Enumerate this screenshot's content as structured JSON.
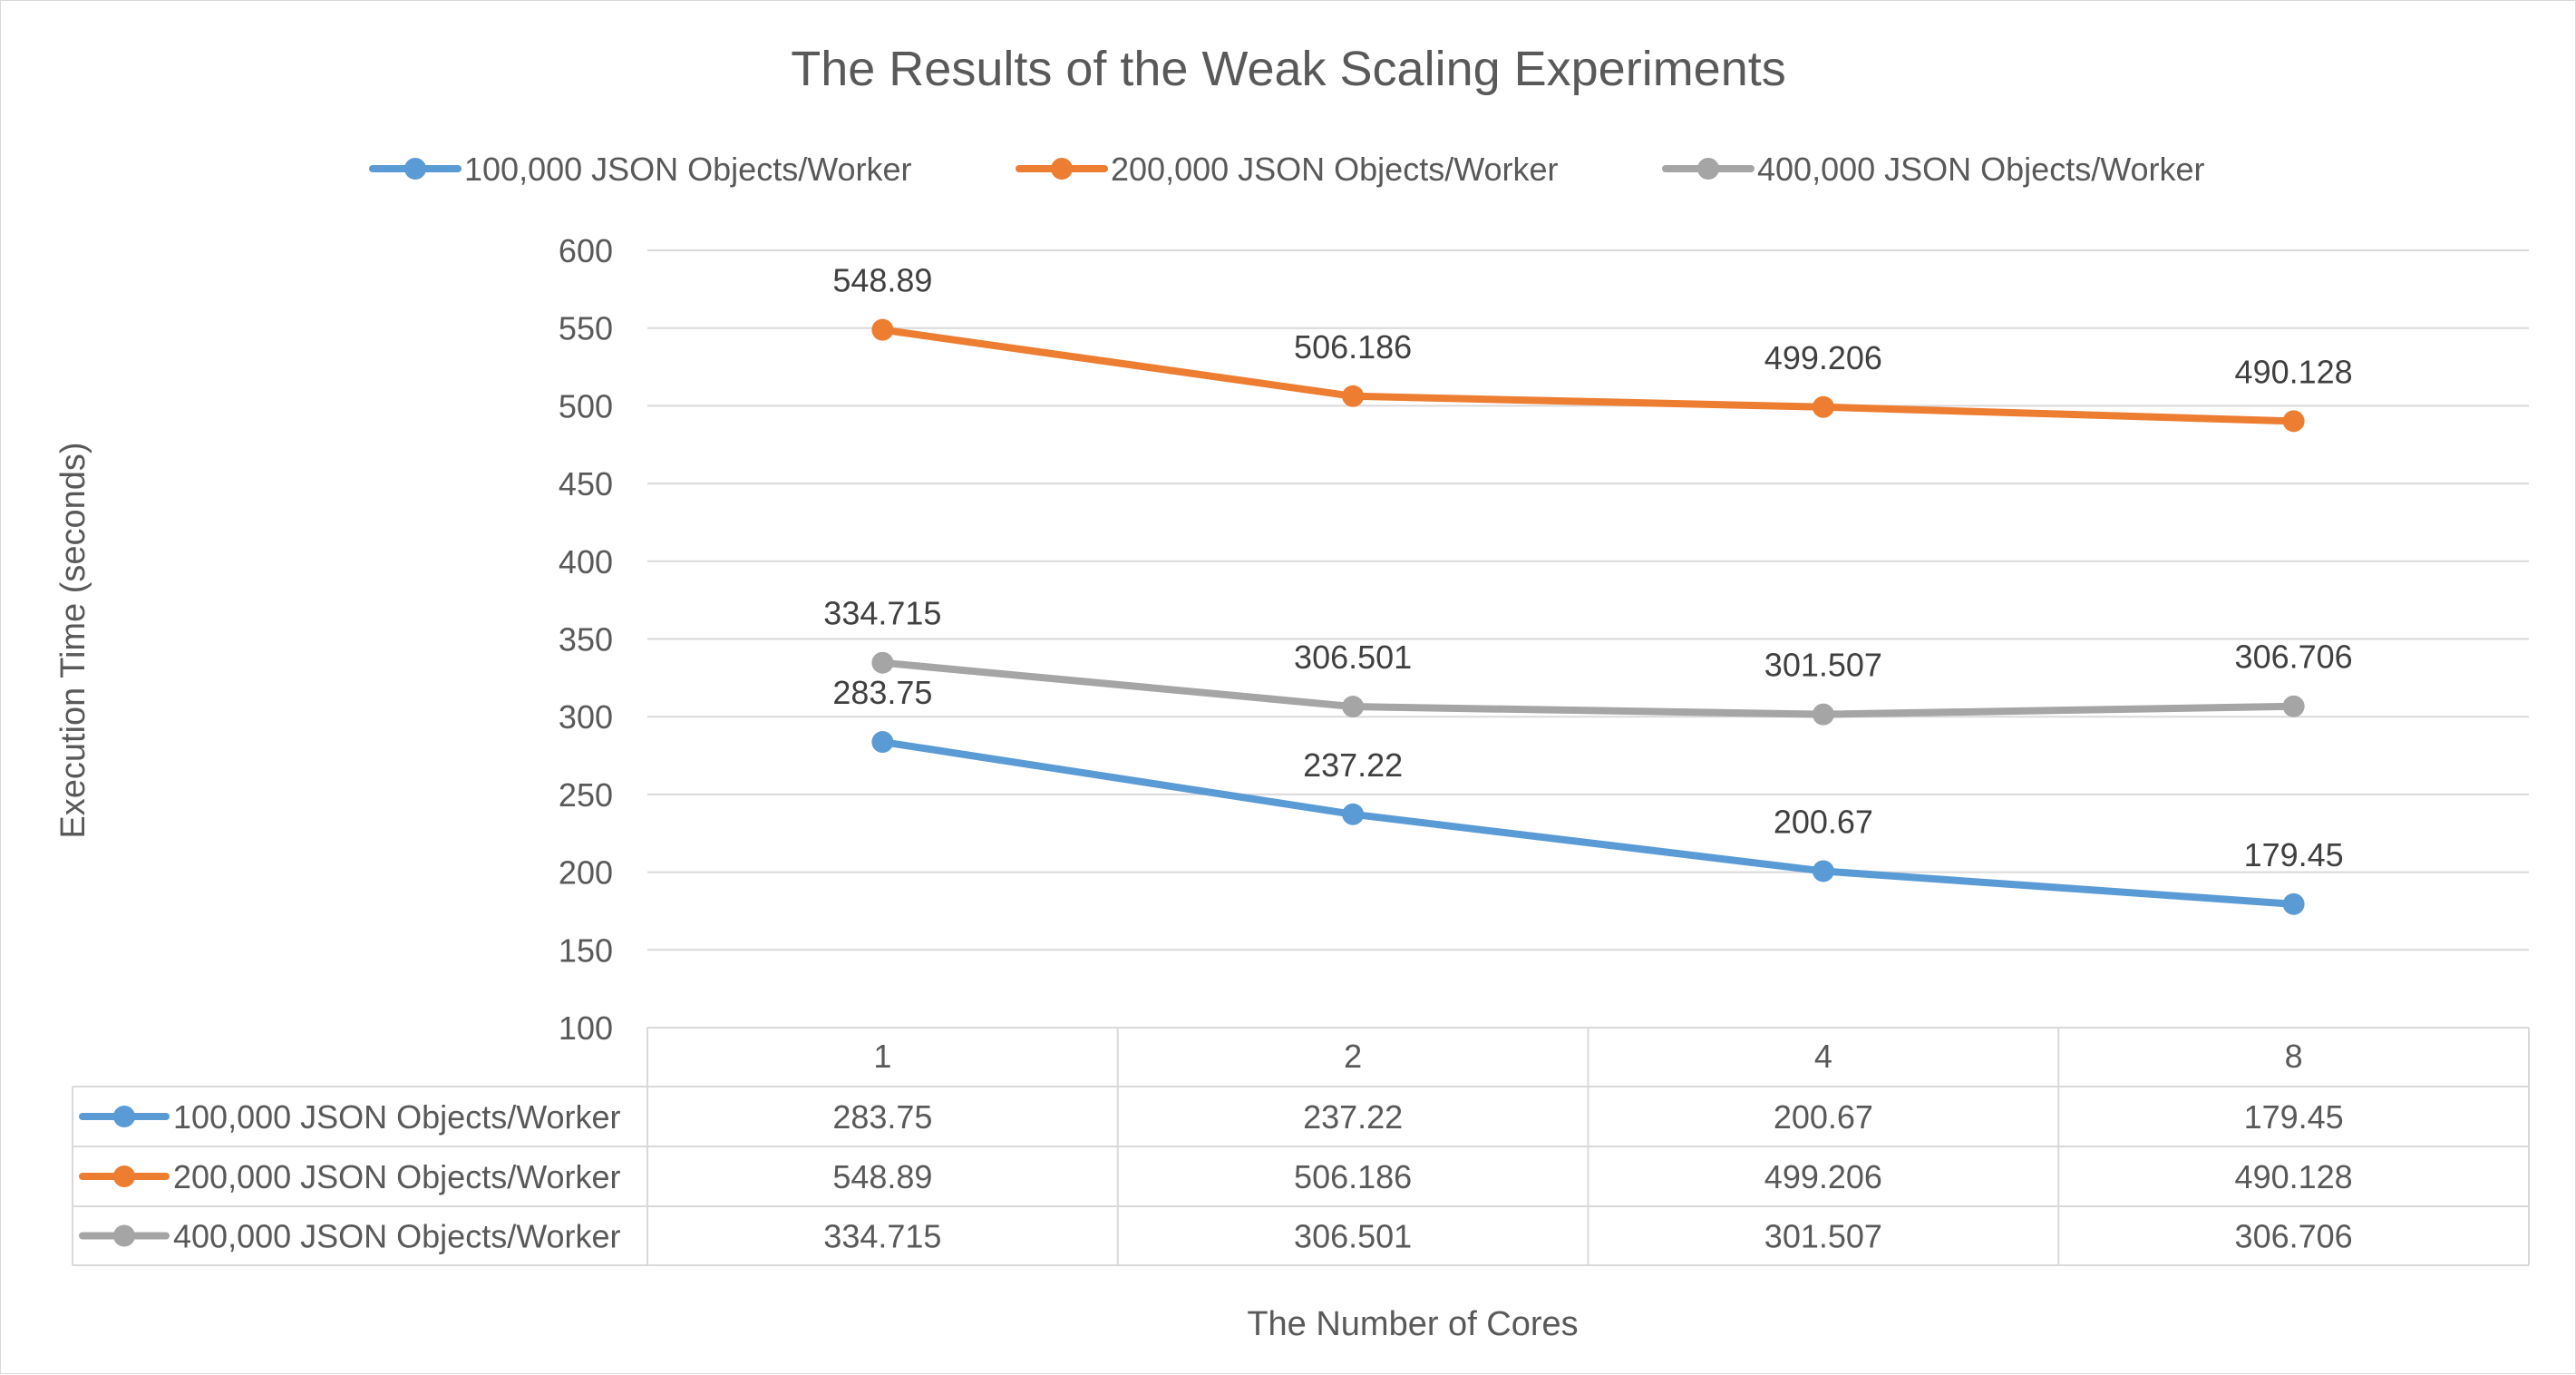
{
  "chart_data": {
    "type": "line",
    "title": "The Results of the Weak Scaling Experiments",
    "xlabel": "The Number of Cores",
    "ylabel": "Execution Time (seconds)",
    "categories": [
      "1",
      "2",
      "4",
      "8"
    ],
    "ylim": [
      100,
      600
    ],
    "yticks": [
      100,
      150,
      200,
      250,
      300,
      350,
      400,
      450,
      500,
      550,
      600
    ],
    "grid": true,
    "legend_position": "top",
    "data_table": true,
    "series": [
      {
        "name": "100,000 JSON Objects/Worker",
        "color": "#5b9bd5",
        "values": [
          283.75,
          237.22,
          200.67,
          179.45
        ]
      },
      {
        "name": "200,000 JSON Objects/Worker",
        "color": "#ed7d31",
        "values": [
          548.89,
          506.186,
          499.206,
          490.128
        ]
      },
      {
        "name": "400,000 JSON Objects/Worker",
        "color": "#a5a5a5",
        "values": [
          334.715,
          306.501,
          301.507,
          306.706
        ]
      }
    ]
  }
}
